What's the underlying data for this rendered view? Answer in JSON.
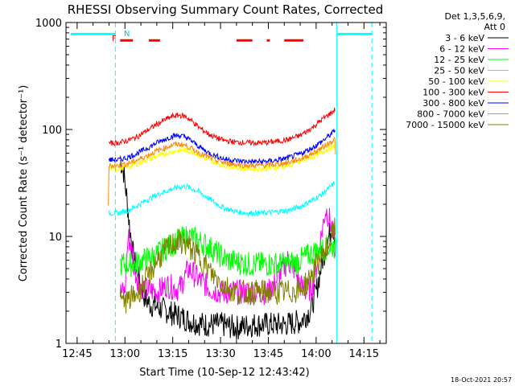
{
  "chart_data": {
    "type": "line",
    "title": "RHESSI Observing Summary Count Rates, Corrected",
    "xlabel": "Start Time (10-Sep-12 12:43:42)",
    "ylabel": "Corrected Count Rate (s⁻¹ detector⁻¹)",
    "y_scale": "log",
    "ylim": [
      1,
      1000
    ],
    "xlim_minutes_after_12_45": [
      -3.5,
      97
    ],
    "x_ticks": [
      "12:45",
      "13:00",
      "13:15",
      "13:30",
      "13:45",
      "14:00",
      "14:15"
    ],
    "y_ticks": [
      "1",
      "10",
      "100",
      "1000"
    ],
    "legend_header": [
      "Det 1,3,5,6,9,",
      "Att 0"
    ],
    "legend_position": "right",
    "flags": {
      "night_label": "N",
      "flare_label": "F"
    },
    "footer_date": "18-Oct-2021 20:57",
    "series": [
      {
        "name": "3 - 6 keV",
        "color": "#000000",
        "t": [
          13.5,
          14.5,
          15.5,
          16.5,
          17.5,
          18.5,
          19.5,
          20.5,
          21.5,
          23,
          25,
          28,
          32,
          36,
          40,
          45,
          50,
          55,
          60,
          65,
          70,
          73,
          75,
          77,
          79,
          80,
          81
        ],
        "values": [
          52,
          42,
          24,
          12,
          7,
          5,
          4,
          3,
          2.6,
          2.3,
          2.2,
          2,
          1.8,
          1.6,
          1.5,
          1.5,
          1.4,
          1.5,
          1.5,
          1.5,
          1.6,
          2,
          3,
          6,
          10,
          13,
          10
        ]
      },
      {
        "name": "6 - 12 keV",
        "color": "#ff00ff",
        "t": [
          13.5,
          15,
          16,
          17,
          18,
          19,
          20,
          22,
          25,
          28,
          32,
          35,
          38,
          42,
          45,
          50,
          55,
          60,
          63,
          66,
          68,
          70,
          72,
          74,
          75,
          76,
          77,
          78,
          79,
          80,
          81
        ],
        "values": [
          3,
          3,
          10,
          8,
          5,
          4,
          3.5,
          3.2,
          3,
          3.5,
          3.2,
          5,
          4,
          3.2,
          3,
          3,
          3,
          3,
          4,
          6,
          5,
          3.5,
          3,
          3.5,
          5,
          8,
          12,
          18,
          15,
          12,
          8
        ]
      },
      {
        "name": "12 - 25 keV",
        "color": "#00ff00",
        "t": [
          13.5,
          16,
          18,
          21,
          24,
          27,
          30,
          33,
          35,
          37,
          40,
          44,
          47,
          50,
          54,
          58,
          62,
          66,
          69,
          72,
          76,
          79,
          81
        ],
        "values": [
          5.5,
          5.5,
          5.5,
          6,
          6.5,
          7.5,
          8.5,
          9.5,
          10,
          9.5,
          8.5,
          7,
          6,
          5.8,
          5.5,
          5.5,
          5.5,
          5.5,
          5.8,
          6.5,
          7.5,
          8,
          8
        ]
      },
      {
        "name": "25 - 50 keV",
        "color": "#00ffff",
        "t": [
          10,
          13,
          16,
          19,
          22,
          25,
          28,
          30,
          32,
          34,
          36,
          38,
          40,
          42,
          44,
          46,
          50,
          54,
          58,
          62,
          66,
          70,
          74,
          77,
          80,
          81
        ],
        "values": [
          16.5,
          16.5,
          17.5,
          19.5,
          22,
          24.5,
          26.5,
          28,
          29,
          29.5,
          28,
          26.5,
          24,
          22,
          20,
          18.5,
          17,
          16.5,
          16.5,
          17,
          17.5,
          19,
          22,
          25,
          30,
          32
        ]
      },
      {
        "name": "50 - 100 keV",
        "color": "#ffff00",
        "t": [
          10,
          13,
          16,
          19,
          22,
          25,
          28,
          30,
          32,
          34,
          36,
          38,
          40,
          42,
          44,
          46,
          50,
          54,
          58,
          62,
          66,
          70,
          74,
          77,
          80,
          81
        ],
        "values": [
          43,
          43,
          45,
          48,
          52,
          56,
          60,
          62,
          64,
          64,
          62,
          58,
          54,
          51,
          48,
          46,
          44,
          43,
          43,
          44,
          46,
          50,
          56,
          62,
          68,
          72
        ]
      },
      {
        "name": "100 - 300 keV",
        "color": "#ff0000",
        "t": [
          10,
          13,
          16,
          19,
          22,
          25,
          28,
          30,
          32,
          34,
          36,
          38,
          40,
          42,
          44,
          46,
          50,
          54,
          58,
          62,
          66,
          70,
          74,
          77,
          80,
          81
        ],
        "values": [
          74,
          75,
          79,
          86,
          98,
          112,
          125,
          133,
          136,
          132,
          120,
          106,
          96,
          88,
          83,
          79,
          76,
          75,
          75,
          77,
          80,
          88,
          105,
          125,
          145,
          155
        ]
      },
      {
        "name": "300 - 800 keV",
        "color": "#0000ff",
        "t": [
          10,
          13,
          16,
          19,
          22,
          25,
          28,
          30,
          32,
          34,
          36,
          38,
          40,
          42,
          44,
          46,
          50,
          54,
          58,
          62,
          66,
          70,
          74,
          77,
          80,
          81
        ],
        "values": [
          52,
          52,
          55,
          60,
          67,
          75,
          82,
          87,
          88,
          85,
          78,
          70,
          64,
          59,
          56,
          53,
          51,
          50,
          50,
          51,
          54,
          59,
          68,
          78,
          92,
          100
        ]
      },
      {
        "name": "800 - 7000 keV",
        "color": "#ff8800",
        "t": [
          9.8,
          10,
          13,
          16,
          19,
          22,
          25,
          28,
          30,
          32,
          34,
          36,
          38,
          40,
          42,
          44,
          46,
          50,
          54,
          58,
          62,
          66,
          70,
          74,
          77,
          80,
          81,
          81.2
        ],
        "values": [
          20,
          46,
          46,
          48,
          52,
          57,
          63,
          68,
          72,
          73,
          71,
          66,
          61,
          57,
          54,
          51,
          49,
          47,
          46,
          46,
          47,
          49,
          53,
          60,
          68,
          78,
          82,
          40
        ]
      },
      {
        "name": "7000 - 15000 keV",
        "color": "#808000",
        "t": [
          13.5,
          16,
          19,
          22,
          25,
          28,
          30,
          32,
          34,
          36,
          38,
          40,
          42,
          44,
          46,
          50,
          54,
          58,
          62,
          66,
          70,
          73,
          76,
          79,
          81
        ],
        "values": [
          2.5,
          2.5,
          3,
          4,
          6,
          7.5,
          8.5,
          9,
          8.5,
          7.5,
          6.5,
          5.5,
          4.5,
          4,
          3.5,
          3,
          3,
          3,
          3,
          3,
          3.2,
          4,
          6,
          8.5,
          12
        ]
      }
    ],
    "saa_intervals_minutes": [
      [
        -2,
        12
      ],
      [
        81.5,
        92.5
      ]
    ],
    "night_start_minutes": 12,
    "eclipse_end_minutes": 81.5,
    "flare_intervals_minutes": [
      [
        13.5,
        17.5
      ],
      [
        22.5,
        26
      ],
      [
        50,
        55
      ],
      [
        59.5,
        60.5
      ],
      [
        65,
        71
      ]
    ]
  }
}
